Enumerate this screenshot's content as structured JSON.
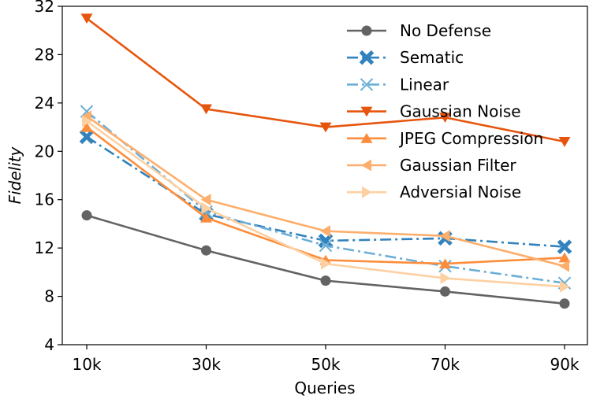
{
  "chart_data": {
    "type": "line",
    "title": "",
    "xlabel": "Queries",
    "ylabel": "Fidelity",
    "categories": [
      "10k",
      "30k",
      "50k",
      "70k",
      "90k"
    ],
    "ylim": [
      4,
      32
    ],
    "yticks": [
      "4",
      "8",
      "12",
      "16",
      "20",
      "24",
      "28",
      "32"
    ],
    "grid": false,
    "legend_position": "top-right",
    "series": [
      {
        "name": "No Defense",
        "values": [
          14.7,
          11.8,
          9.3,
          8.4,
          7.4
        ],
        "color": "#636363",
        "marker": "circle",
        "dash": "solid"
      },
      {
        "name": "Sematic",
        "values": [
          21.2,
          14.8,
          12.6,
          12.8,
          12.1
        ],
        "color": "#3182bd",
        "marker": "x-thick",
        "dash": "dashdot"
      },
      {
        "name": "Linear",
        "values": [
          23.3,
          15.0,
          12.2,
          10.5,
          9.1
        ],
        "color": "#6baed6",
        "marker": "x",
        "dash": "dashdot"
      },
      {
        "name": "Gaussian Noise",
        "values": [
          31.0,
          23.5,
          22.0,
          22.8,
          20.8
        ],
        "color": "#e6550d",
        "marker": "triangle-down",
        "dash": "solid"
      },
      {
        "name": "JPEG Compression",
        "values": [
          22.0,
          14.5,
          11.0,
          10.7,
          11.2
        ],
        "color": "#fd8d3c",
        "marker": "triangle-up",
        "dash": "solid"
      },
      {
        "name": "Gaussian Filter",
        "values": [
          22.9,
          16.0,
          13.4,
          13.0,
          10.5
        ],
        "color": "#fdae6b",
        "marker": "triangle-left",
        "dash": "solid"
      },
      {
        "name": "Adversial Noise",
        "values": [
          22.5,
          15.3,
          10.7,
          9.5,
          8.8
        ],
        "color": "#fdd0a2",
        "marker": "triangle-right",
        "dash": "solid"
      }
    ]
  }
}
